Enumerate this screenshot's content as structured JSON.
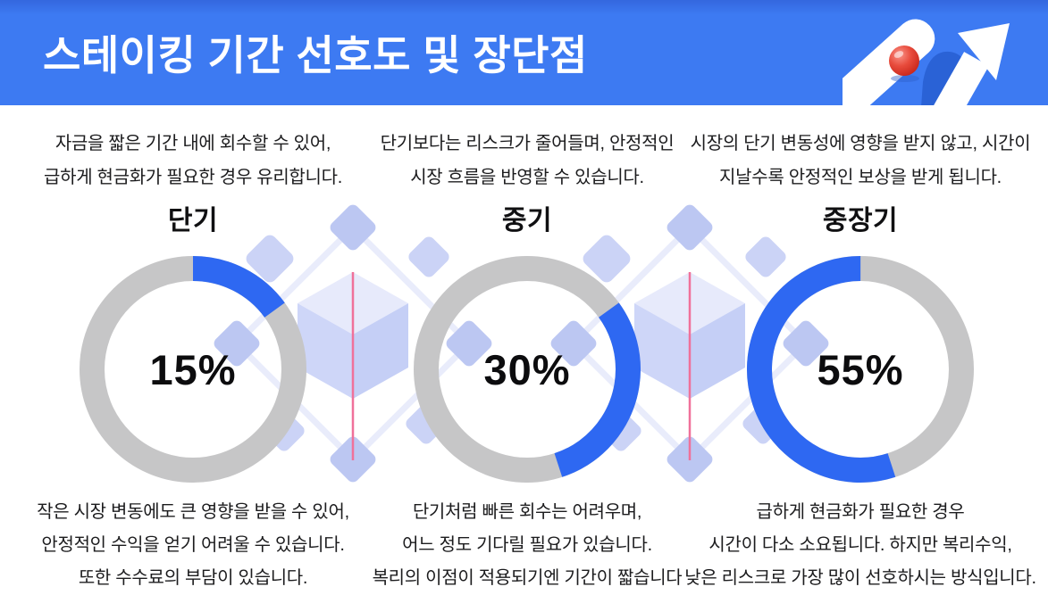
{
  "header": {
    "title": "스테이킹 기간 선호도 및 장단점",
    "icon": "growth-arrow-with-ball"
  },
  "colors": {
    "header-bg": "#3D7AF2",
    "header-bg-top": "#3467DE",
    "title-text": "#FFFFFF",
    "body-text": "#1C1C1E",
    "donut-fill": "#2E68F2",
    "donut-track": "#C6C6C7",
    "decor-diamond": "#BCC7F2",
    "decor-diamond-light": "#CBD3F6",
    "decor-outline": "#E9ECFB",
    "cube-top": "#E7EAFB",
    "cube-left": "#CED6F8",
    "cube-right": "#C5CFF6",
    "divider-pink": "#F0719A",
    "icon-arch-blue": "#2A62D6",
    "ball-red-dark": "#D92B1F",
    "ball-red-light": "#F9867A"
  },
  "chart_data": {
    "type": "pie",
    "subtype": "donut-gauges",
    "title": "스테이킹 기간 선호도 및 장단점",
    "categories": [
      "단기",
      "중기",
      "중장기"
    ],
    "values": [
      15,
      30,
      55
    ],
    "unit": "%",
    "value_color": "#2E68F2",
    "track_color": "#C6C6C7",
    "legend": "none",
    "labels_inside_center": true
  },
  "columns": [
    {
      "id": "short-term",
      "label": "단기",
      "percent": 15,
      "percent_label": "15%",
      "arc_start_deg": 0,
      "pros_lines": [
        "자금을 짧은 기간 내에 회수할 수 있어,",
        "급하게 현금화가 필요한 경우 유리합니다."
      ],
      "cons_lines": [
        "작은 시장 변동에도 큰 영향을 받을 수 있어,",
        "안정적인 수익을 얻기 어려울 수 있습니다.",
        "또한 수수료의 부담이 있습니다."
      ]
    },
    {
      "id": "mid-term",
      "label": "중기",
      "percent": 30,
      "percent_label": "30%",
      "arc_start_deg": 54,
      "pros_lines": [
        "단기보다는 리스크가 줄어들며, 안정적인",
        "시장 흐름을 반영할 수 있습니다."
      ],
      "cons_lines": [
        "단기처럼 빠른 회수는 어려우며,",
        "어느 정도 기다릴 필요가 있습니다.",
        "복리의 이점이 적용되기엔 기간이 짧습니다"
      ]
    },
    {
      "id": "mid-long-term",
      "label": "중장기",
      "percent": 55,
      "percent_label": "55%",
      "arc_start_deg": 162,
      "pros_lines": [
        "시장의 단기 변동성에 영향을 받지 않고, 시간이",
        "지날수록 안정적인 보상을 받게 됩니다."
      ],
      "cons_lines": [
        "급하게 현금화가 필요한 경우",
        "시간이 다소 소요됩니다. 하지만 복리수익,",
        "낮은 리스크로 가장 많이 선호하시는 방식입니다."
      ]
    }
  ]
}
